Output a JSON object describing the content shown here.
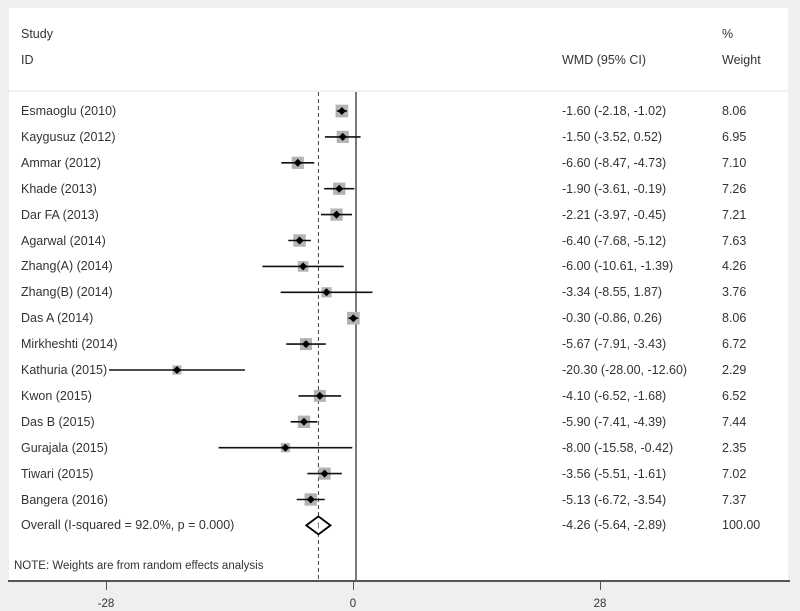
{
  "header": {
    "study_line1": "Study",
    "study_line2": "ID",
    "effect_label": "WMD (95% CI)",
    "weight_line1": "%",
    "weight_line2": "Weight"
  },
  "rows": [
    {
      "label": "Esmaoglu (2010)",
      "est": "-1.60 (-2.18, -1.02)",
      "weight": "8.06"
    },
    {
      "label": "Kaygusuz (2012)",
      "est": "-1.50 (-3.52, 0.52)",
      "weight": "6.95"
    },
    {
      "label": "Ammar (2012)",
      "est": "-6.60 (-8.47, -4.73)",
      "weight": "7.10"
    },
    {
      "label": "Khade (2013)",
      "est": "-1.90 (-3.61, -0.19)",
      "weight": "7.26"
    },
    {
      "label": "Dar FA (2013)",
      "est": "-2.21 (-3.97, -0.45)",
      "weight": "7.21"
    },
    {
      "label": "Agarwal (2014)",
      "est": "-6.40 (-7.68, -5.12)",
      "weight": "7.63"
    },
    {
      "label": "Zhang(A) (2014)",
      "est": "-6.00 (-10.61, -1.39)",
      "weight": "4.26"
    },
    {
      "label": "Zhang(B) (2014)",
      "est": "-3.34 (-8.55, 1.87)",
      "weight": "3.76"
    },
    {
      "label": "Das A (2014)",
      "est": "-0.30 (-0.86, 0.26)",
      "weight": "8.06"
    },
    {
      "label": "Mirkheshti (2014)",
      "est": "-5.67 (-7.91, -3.43)",
      "weight": "6.72"
    },
    {
      "label": "Kathuria (2015)",
      "est": "-20.30 (-28.00, -12.60)",
      "weight": "2.29"
    },
    {
      "label": "Kwon (2015)",
      "est": "-4.10 (-6.52, -1.68)",
      "weight": "6.52"
    },
    {
      "label": "Das B (2015)",
      "est": "-5.90 (-7.41, -4.39)",
      "weight": "7.44"
    },
    {
      "label": "Gurajala (2015)",
      "est": "-8.00 (-15.58, -0.42)",
      "weight": "2.35"
    },
    {
      "label": "Tiwari (2015)",
      "est": "-3.56 (-5.51, -1.61)",
      "weight": "7.02"
    },
    {
      "label": "Bangera (2016)",
      "est": "-5.13 (-6.72, -3.54)",
      "weight": "7.37"
    },
    {
      "label": "Overall  (I-squared = 92.0%, p = 0.000)",
      "est": "-4.26 (-5.64, -2.89)",
      "weight": "100.00"
    }
  ],
  "note": "NOTE: Weights are from random effects analysis",
  "axis": {
    "ticks": [
      "-28",
      "0",
      "28"
    ]
  },
  "chart_data": {
    "type": "forest",
    "title": "",
    "xlabel": "",
    "ylabel": "",
    "effect_measure": "WMD (95% CI)",
    "x_ticks": [
      -28,
      0,
      28
    ],
    "null_line": 0,
    "studies": [
      {
        "study": "Esmaoglu (2010)",
        "wmd": -1.6,
        "lower": -2.18,
        "upper": -1.02,
        "weight": 8.06
      },
      {
        "study": "Kaygusuz (2012)",
        "wmd": -1.5,
        "lower": -3.52,
        "upper": 0.52,
        "weight": 6.95
      },
      {
        "study": "Ammar (2012)",
        "wmd": -6.6,
        "lower": -8.47,
        "upper": -4.73,
        "weight": 7.1
      },
      {
        "study": "Khade (2013)",
        "wmd": -1.9,
        "lower": -3.61,
        "upper": -0.19,
        "weight": 7.26
      },
      {
        "study": "Dar FA (2013)",
        "wmd": -2.21,
        "lower": -3.97,
        "upper": -0.45,
        "weight": 7.21
      },
      {
        "study": "Agarwal (2014)",
        "wmd": -6.4,
        "lower": -7.68,
        "upper": -5.12,
        "weight": 7.63
      },
      {
        "study": "Zhang(A) (2014)",
        "wmd": -6.0,
        "lower": -10.61,
        "upper": -1.39,
        "weight": 4.26
      },
      {
        "study": "Zhang(B) (2014)",
        "wmd": -3.34,
        "lower": -8.55,
        "upper": 1.87,
        "weight": 3.76
      },
      {
        "study": "Das A (2014)",
        "wmd": -0.3,
        "lower": -0.86,
        "upper": 0.26,
        "weight": 8.06
      },
      {
        "study": "Mirkheshti (2014)",
        "wmd": -5.67,
        "lower": -7.91,
        "upper": -3.43,
        "weight": 6.72
      },
      {
        "study": "Kathuria (2015)",
        "wmd": -20.3,
        "lower": -28.0,
        "upper": -12.6,
        "weight": 2.29
      },
      {
        "study": "Kwon (2015)",
        "wmd": -4.1,
        "lower": -6.52,
        "upper": -1.68,
        "weight": 6.52
      },
      {
        "study": "Das B (2015)",
        "wmd": -5.9,
        "lower": -7.41,
        "upper": -4.39,
        "weight": 7.44
      },
      {
        "study": "Gurajala (2015)",
        "wmd": -8.0,
        "lower": -15.58,
        "upper": -0.42,
        "weight": 2.35
      },
      {
        "study": "Tiwari (2015)",
        "wmd": -3.56,
        "lower": -5.51,
        "upper": -1.61,
        "weight": 7.02
      },
      {
        "study": "Bangera (2016)",
        "wmd": -5.13,
        "lower": -6.72,
        "upper": -3.54,
        "weight": 7.37
      }
    ],
    "overall": {
      "label": "Overall  (I-squared = 92.0%, p = 0.000)",
      "wmd": -4.26,
      "lower": -5.64,
      "upper": -2.89,
      "weight": 100.0,
      "i_squared": "92.0%",
      "p": "0.000"
    },
    "note": "NOTE: Weights are from random effects analysis"
  }
}
